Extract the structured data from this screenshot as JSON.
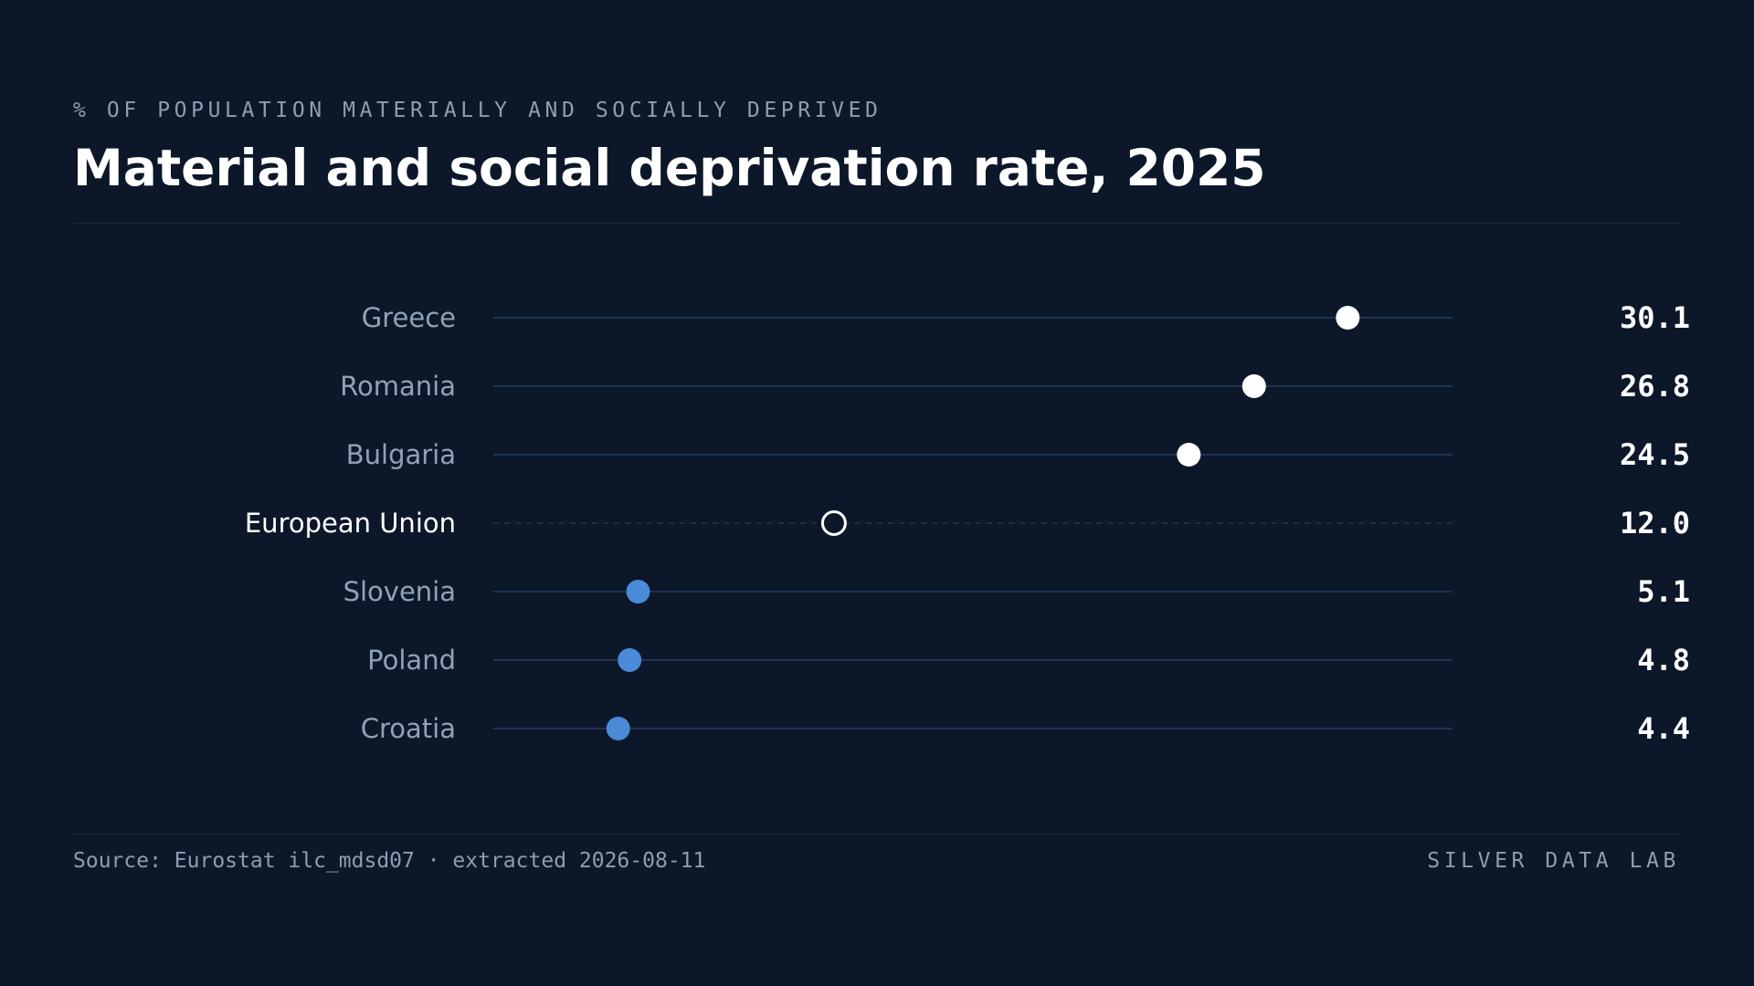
{
  "header": {
    "kicker": "% OF POPULATION MATERIALLY AND SOCIALLY DEPRIVED",
    "title": "Material and social deprivation rate, 2025"
  },
  "footer": {
    "source": "Source: Eurostat ilc_mdsd07 · extracted 2026-08-11",
    "brand": "SILVER DATA LAB"
  },
  "colors": {
    "background": "#0c1829",
    "track": "#1f3250",
    "high": "#ffffff",
    "low": "#4a8ad6",
    "reference": "#ffffff"
  },
  "chart_data": {
    "type": "dot",
    "title": "Material and social deprivation rate, 2025",
    "subtitle": "% OF POPULATION MATERIALLY AND SOCIALLY DEPRIVED",
    "xlim": [
      0,
      34
    ],
    "grid": false,
    "legend": "none",
    "categories": [
      "Greece",
      "Romania",
      "Bulgaria",
      "European Union",
      "Slovenia",
      "Poland",
      "Croatia"
    ],
    "values": [
      30.1,
      26.8,
      24.5,
      12.0,
      5.1,
      4.8,
      4.4
    ],
    "value_labels": [
      "30.1",
      "26.8",
      "24.5",
      "12.0",
      "5.1",
      "4.8",
      "4.4"
    ],
    "groups": [
      "high",
      "high",
      "high",
      "reference",
      "low",
      "low",
      "low"
    ]
  }
}
